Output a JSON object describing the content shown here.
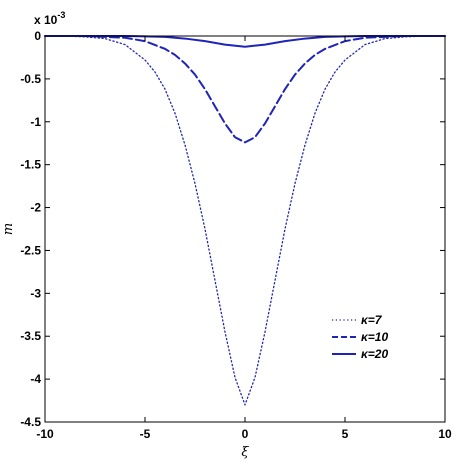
{
  "chart_data": {
    "type": "line",
    "title": "",
    "xlabel": "ξ",
    "ylabel": "m",
    "y_exponent_label": "x 10",
    "y_exponent_power": "-3",
    "xlim": [
      -10,
      10
    ],
    "ylim": [
      -4.5,
      0
    ],
    "x_ticks": [
      -10,
      -5,
      0,
      5,
      10
    ],
    "x_tick_labels": [
      "-10",
      "-5",
      "0",
      "5",
      "10"
    ],
    "y_ticks": [
      0,
      -0.5,
      -1,
      -1.5,
      -2,
      -2.5,
      -3,
      -3.5,
      -4,
      -4.5
    ],
    "y_tick_labels": [
      "0",
      "-0.5",
      "-1",
      "-1.5",
      "-2",
      "-2.5",
      "-3",
      "-3.5",
      "-4",
      "-4.5"
    ],
    "grid": false,
    "legend_position": "bottom-right",
    "line_color": "#1f24b8",
    "series": [
      {
        "name": "κ=7",
        "style": "dotted",
        "x": [
          -10,
          -9,
          -8,
          -7,
          -6,
          -5,
          -4.5,
          -4,
          -3.5,
          -3,
          -2.5,
          -2,
          -1.5,
          -1,
          -0.5,
          0,
          0.5,
          1,
          1.5,
          2,
          2.5,
          3,
          3.5,
          4,
          4.5,
          5,
          6,
          7,
          8,
          9,
          10
        ],
        "y": [
          0,
          0,
          -0.01,
          -0.03,
          -0.1,
          -0.28,
          -0.42,
          -0.62,
          -0.9,
          -1.27,
          -1.72,
          -2.25,
          -2.85,
          -3.45,
          -3.98,
          -4.3,
          -3.98,
          -3.45,
          -2.85,
          -2.25,
          -1.72,
          -1.27,
          -0.9,
          -0.62,
          -0.42,
          -0.28,
          -0.1,
          -0.03,
          -0.01,
          0,
          0
        ]
      },
      {
        "name": "κ=10",
        "style": "dashed",
        "x": [
          -10,
          -8,
          -7,
          -6,
          -5,
          -4,
          -3.5,
          -3,
          -2.5,
          -2,
          -1.5,
          -1,
          -0.5,
          0,
          0.5,
          1,
          1.5,
          2,
          2.5,
          3,
          3.5,
          4,
          5,
          6,
          7,
          8,
          10
        ],
        "y": [
          0,
          0,
          -0.01,
          -0.02,
          -0.06,
          -0.15,
          -0.22,
          -0.32,
          -0.45,
          -0.62,
          -0.82,
          -1.02,
          -1.18,
          -1.24,
          -1.18,
          -1.02,
          -0.82,
          -0.62,
          -0.45,
          -0.32,
          -0.22,
          -0.15,
          -0.06,
          -0.02,
          -0.01,
          0,
          0
        ]
      },
      {
        "name": "κ=20",
        "style": "solid",
        "x": [
          -10,
          -7,
          -6,
          -5,
          -4,
          -3,
          -2,
          -1,
          0,
          1,
          2,
          3,
          4,
          5,
          6,
          7,
          10
        ],
        "y": [
          0,
          0,
          0,
          -0.005,
          -0.01,
          -0.03,
          -0.06,
          -0.1,
          -0.125,
          -0.1,
          -0.06,
          -0.03,
          -0.01,
          -0.005,
          0,
          0,
          0
        ]
      }
    ]
  }
}
